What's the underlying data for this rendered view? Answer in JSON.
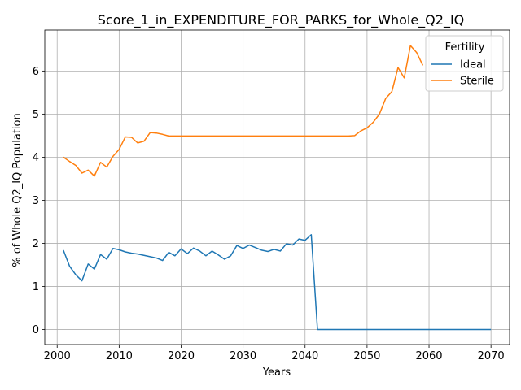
{
  "chart_data": {
    "type": "line",
    "title": "Score_1_in_EXPENDITURE_FOR_PARKS_for_Whole_Q2_IQ",
    "xlabel": "Years",
    "ylabel": "% of Whole Q2_IQ Population",
    "xlim": [
      1998,
      2073
    ],
    "ylim": [
      -0.35,
      6.95
    ],
    "xticks": [
      2000,
      2010,
      2020,
      2030,
      2040,
      2050,
      2060,
      2070
    ],
    "yticks": [
      0,
      1,
      2,
      3,
      4,
      5,
      6
    ],
    "grid": true,
    "legend": {
      "title": "Fertility",
      "placement": "top-right"
    },
    "series": [
      {
        "name": "Ideal",
        "color": "#1f77b4",
        "x": [
          2001,
          2002,
          2003,
          2004,
          2005,
          2006,
          2007,
          2008,
          2009,
          2010,
          2011,
          2012,
          2013,
          2014,
          2015,
          2016,
          2017,
          2018,
          2019,
          2020,
          2021,
          2022,
          2023,
          2024,
          2025,
          2026,
          2027,
          2028,
          2029,
          2030,
          2031,
          2032,
          2033,
          2034,
          2035,
          2036,
          2037,
          2038,
          2039,
          2040,
          2041,
          2042,
          2043,
          2044,
          2045,
          2046,
          2047,
          2048,
          2049,
          2050,
          2051,
          2052,
          2053,
          2054,
          2055,
          2056,
          2057,
          2058,
          2059,
          2060,
          2061,
          2062,
          2063,
          2064,
          2065,
          2066,
          2067,
          2068,
          2069,
          2070
        ],
        "y": [
          1.84,
          1.47,
          1.27,
          1.13,
          1.52,
          1.4,
          1.74,
          1.63,
          1.88,
          1.85,
          1.8,
          1.77,
          1.75,
          1.72,
          1.69,
          1.66,
          1.6,
          1.79,
          1.71,
          1.87,
          1.76,
          1.89,
          1.82,
          1.71,
          1.82,
          1.73,
          1.63,
          1.71,
          1.95,
          1.88,
          1.96,
          1.9,
          1.84,
          1.81,
          1.86,
          1.82,
          1.99,
          1.96,
          2.1,
          2.07,
          2.2,
          0.0,
          0.0,
          0.0,
          0.0,
          0.0,
          0.0,
          0.0,
          0.0,
          0.0,
          0.0,
          0.0,
          0.0,
          0.0,
          0.0,
          0.0,
          0.0,
          0.0,
          0.0,
          0.0,
          0.0,
          0.0,
          0.0,
          0.0,
          0.0,
          0.0,
          0.0,
          0.0,
          0.0,
          0.0
        ]
      },
      {
        "name": "Sterile",
        "color": "#ff7f0e",
        "x": [
          2001,
          2002,
          2003,
          2004,
          2005,
          2006,
          2007,
          2008,
          2009,
          2010,
          2011,
          2012,
          2013,
          2014,
          2015,
          2016,
          2017,
          2018,
          2019,
          2020,
          2021,
          2022,
          2023,
          2024,
          2025,
          2026,
          2027,
          2028,
          2029,
          2030,
          2031,
          2032,
          2033,
          2034,
          2035,
          2036,
          2037,
          2038,
          2039,
          2040,
          2041,
          2042,
          2043,
          2044,
          2045,
          2046,
          2047,
          2048,
          2049,
          2050,
          2051,
          2052,
          2053,
          2054,
          2055,
          2056,
          2057,
          2058,
          2059
        ],
        "y": [
          4.0,
          3.9,
          3.81,
          3.63,
          3.7,
          3.56,
          3.88,
          3.77,
          4.02,
          4.18,
          4.47,
          4.46,
          4.33,
          4.37,
          4.57,
          4.56,
          4.53,
          4.49,
          4.49,
          4.49,
          4.49,
          4.49,
          4.49,
          4.49,
          4.49,
          4.49,
          4.49,
          4.49,
          4.49,
          4.49,
          4.49,
          4.49,
          4.49,
          4.49,
          4.49,
          4.49,
          4.49,
          4.49,
          4.49,
          4.49,
          4.49,
          4.49,
          4.49,
          4.49,
          4.49,
          4.49,
          4.49,
          4.5,
          4.61,
          4.68,
          4.81,
          5.0,
          5.36,
          5.52,
          6.08,
          5.84,
          6.59,
          6.43,
          6.13
        ]
      }
    ]
  }
}
